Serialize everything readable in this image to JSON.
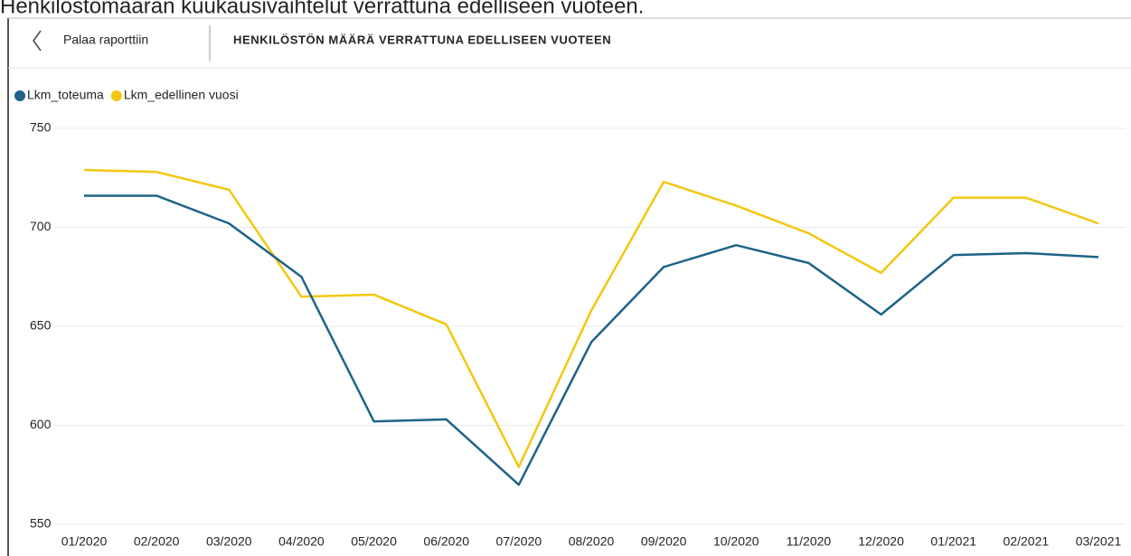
{
  "page": {
    "caption": "Henkilöstömäärän kuukausivaihtelut verrattuna edelliseen vuoteen.",
    "back_label": "Palaa raporttiin",
    "title": "HENKILÖSTÖN MÄÄRÄ VERRATTUNA EDELLISEEN VUOTEEN"
  },
  "chart_data": {
    "type": "line",
    "categories": [
      "01/2020",
      "02/2020",
      "03/2020",
      "04/2020",
      "05/2020",
      "06/2020",
      "07/2020",
      "08/2020",
      "09/2020",
      "10/2020",
      "11/2020",
      "12/2020",
      "01/2021",
      "02/2021",
      "03/2021"
    ],
    "series": [
      {
        "name": "Lkm_toteuma",
        "color": "#1f6388",
        "values": [
          716,
          716,
          702,
          675,
          602,
          603,
          570,
          642,
          680,
          691,
          682,
          656,
          686,
          687,
          685
        ]
      },
      {
        "name": "Lkm_edellinen vuosi",
        "color": "#f2c811",
        "values": [
          729,
          728,
          719,
          665,
          666,
          651,
          579,
          658,
          723,
          711,
          697,
          677,
          715,
          715,
          702
        ]
      }
    ],
    "ylim": [
      550,
      750
    ],
    "yticks": [
      550,
      600,
      650,
      700,
      750
    ],
    "grid": true,
    "legend": "top-left"
  }
}
